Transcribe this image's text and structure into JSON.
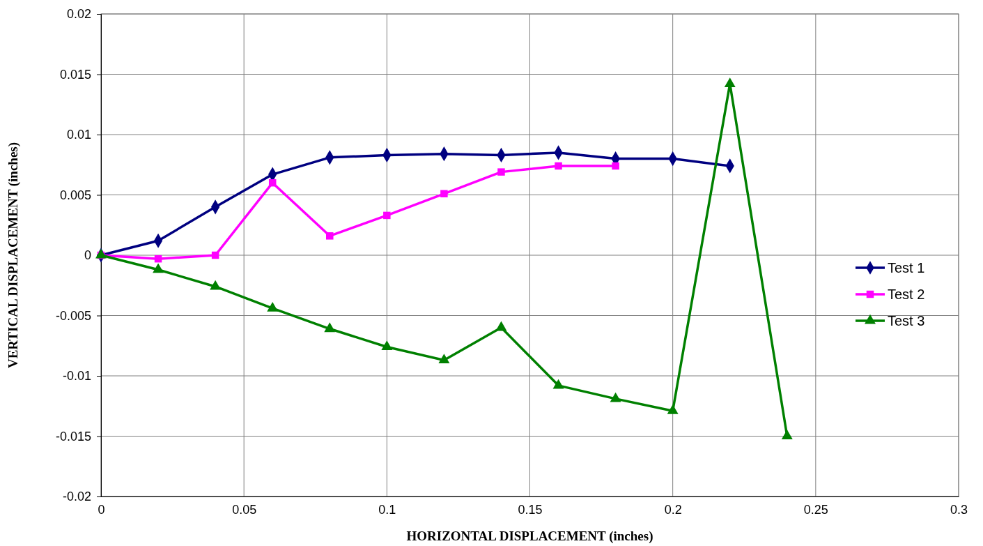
{
  "chart_data": {
    "type": "line",
    "xlabel": "HORIZONTAL DISPLACEMENT (inches)",
    "ylabel": "VERTICAL DISPLACEMENT (inches)",
    "xlim": [
      0,
      0.3
    ],
    "xticks": [
      0,
      0.05,
      0.1,
      0.15,
      0.2,
      0.25,
      0.3
    ],
    "ylim": [
      -0.02,
      0.02
    ],
    "yticks": [
      -0.02,
      -0.015,
      -0.01,
      -0.005,
      0,
      0.005,
      0.01,
      0.015,
      0.02
    ],
    "grid": true,
    "legend": "right",
    "line_style": "solid",
    "series": [
      {
        "name": "Test 1",
        "color": "#000080",
        "marker": "diamond",
        "x": [
          0,
          0.02,
          0.04,
          0.06,
          0.08,
          0.1,
          0.12,
          0.14,
          0.16,
          0.18,
          0.2,
          0.22
        ],
        "values": [
          0,
          0.0012,
          0.004,
          0.0067,
          0.0081,
          0.0083,
          0.0084,
          0.0083,
          0.0085,
          0.008,
          0.008,
          0.0074
        ]
      },
      {
        "name": "Test 2",
        "color": "#ff00ff",
        "marker": "square",
        "x": [
          0,
          0.02,
          0.04,
          0.06,
          0.08,
          0.1,
          0.12,
          0.14,
          0.16,
          0.18
        ],
        "values": [
          0,
          -0.0003,
          0,
          0.006,
          0.0016,
          0.0033,
          0.0051,
          0.0069,
          0.0074,
          0.0074
        ]
      },
      {
        "name": "Test 3",
        "color": "#008000",
        "marker": "triangle",
        "x": [
          0,
          0.02,
          0.04,
          0.06,
          0.08,
          0.1,
          0.12,
          0.14,
          0.16,
          0.18,
          0.2,
          0.22,
          0.24
        ],
        "values": [
          0,
          -0.0012,
          -0.0026,
          -0.0044,
          -0.0061,
          -0.0076,
          -0.0087,
          -0.006,
          -0.0108,
          -0.0119,
          -0.0129,
          0.0142,
          -0.015
        ]
      }
    ]
  }
}
